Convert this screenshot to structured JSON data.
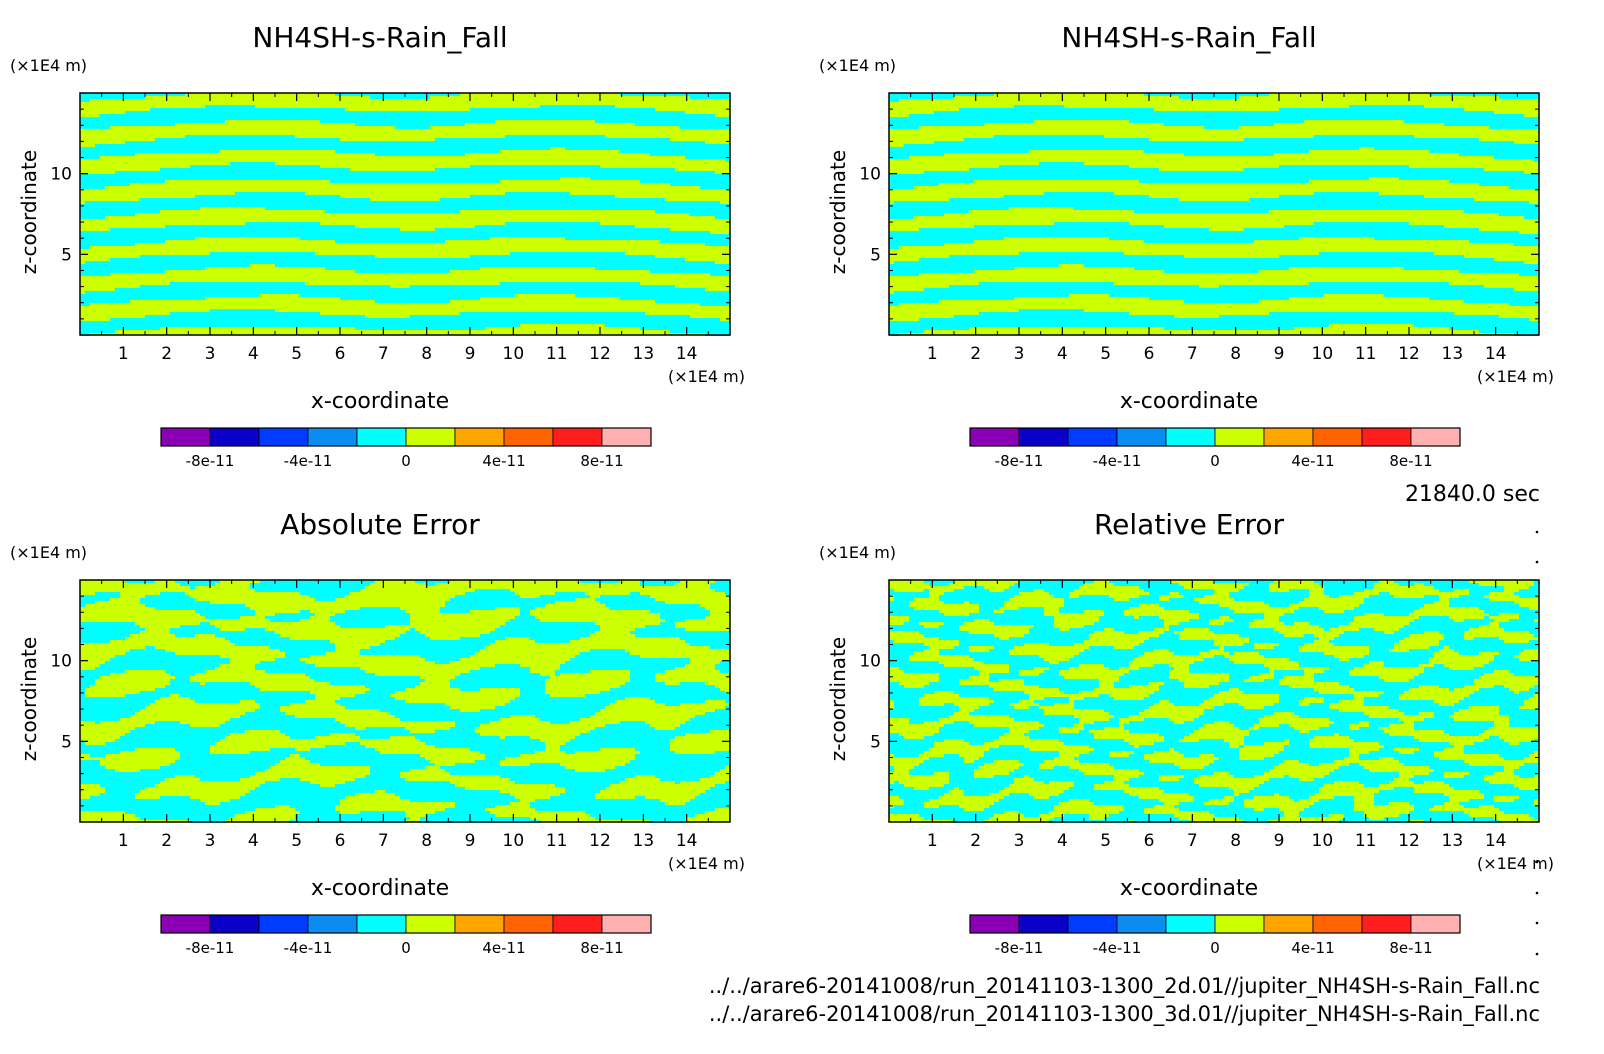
{
  "figure": {
    "time_label": "21840.0 sec",
    "file_paths": [
      "../../arare6-20141008/run_20141103-1300_2d.01//jupiter_NH4SH-s-Rain_Fall.nc",
      "../../arare6-20141008/run_20141103-1300_3d.01//jupiter_NH4SH-s-Rain_Fall.nc"
    ],
    "colors": {
      "field_low": "#00ffff",
      "field_high": "#ccff00",
      "frame": "#000000"
    }
  },
  "chart_data": [
    {
      "type": "heatmap",
      "title": "NH4SH-s-Rain_Fall",
      "xlabel": "x-coordinate",
      "ylabel": "z-coordinate",
      "x_unit": "(×1E4 m)",
      "y_unit": "(×1E4 m)",
      "xlim": [
        0,
        15
      ],
      "ylim": [
        0,
        15
      ],
      "x_ticks": [
        1,
        2,
        3,
        4,
        5,
        6,
        7,
        8,
        9,
        10,
        11,
        12,
        13,
        14
      ],
      "y_ticks": [
        5,
        10
      ],
      "pattern": "smooth",
      "colorbar": {
        "colors": [
          "#8b00b5",
          "#0a00c8",
          "#003cff",
          "#0a8cf0",
          "#00ffff",
          "#ccff00",
          "#ffa500",
          "#ff6400",
          "#ff1e1e",
          "#ffb0b0"
        ],
        "tick_values": [
          -8e-11,
          -4e-11,
          0,
          4e-11,
          8e-11
        ],
        "tick_labels": [
          "-8e-11",
          "-4e-11",
          "0",
          "4e-11",
          "8e-11"
        ],
        "range": [
          -1e-10,
          1e-10
        ]
      }
    },
    {
      "type": "heatmap",
      "title": "NH4SH-s-Rain_Fall",
      "xlabel": "x-coordinate",
      "ylabel": "z-coordinate",
      "x_unit": "(×1E4 m)",
      "y_unit": "(×1E4 m)",
      "xlim": [
        0,
        15
      ],
      "ylim": [
        0,
        15
      ],
      "x_ticks": [
        1,
        2,
        3,
        4,
        5,
        6,
        7,
        8,
        9,
        10,
        11,
        12,
        13,
        14
      ],
      "y_ticks": [
        5,
        10
      ],
      "pattern": "smooth",
      "colorbar": {
        "colors": [
          "#8b00b5",
          "#0a00c8",
          "#003cff",
          "#0a8cf0",
          "#00ffff",
          "#ccff00",
          "#ffa500",
          "#ff6400",
          "#ff1e1e",
          "#ffb0b0"
        ],
        "tick_values": [
          -8e-11,
          -4e-11,
          0,
          4e-11,
          8e-11
        ],
        "tick_labels": [
          "-8e-11",
          "-4e-11",
          "0",
          "4e-11",
          "8e-11"
        ],
        "range": [
          -1e-10,
          1e-10
        ]
      }
    },
    {
      "type": "heatmap",
      "title": "Absolute Error",
      "xlabel": "x-coordinate",
      "ylabel": "z-coordinate",
      "x_unit": "(×1E4 m)",
      "y_unit": "(×1E4 m)",
      "xlim": [
        0,
        15
      ],
      "ylim": [
        0,
        15
      ],
      "x_ticks": [
        1,
        2,
        3,
        4,
        5,
        6,
        7,
        8,
        9,
        10,
        11,
        12,
        13,
        14
      ],
      "y_ticks": [
        5,
        10
      ],
      "pattern": "noisy",
      "colorbar": {
        "colors": [
          "#8b00b5",
          "#0a00c8",
          "#003cff",
          "#0a8cf0",
          "#00ffff",
          "#ccff00",
          "#ffa500",
          "#ff6400",
          "#ff1e1e",
          "#ffb0b0"
        ],
        "tick_values": [
          -8e-11,
          -4e-11,
          0,
          4e-11,
          8e-11
        ],
        "tick_labels": [
          "-8e-11",
          "-4e-11",
          "0",
          "4e-11",
          "8e-11"
        ],
        "range": [
          -1e-10,
          1e-10
        ]
      }
    },
    {
      "type": "heatmap",
      "title": "Relative Error",
      "xlabel": "x-coordinate",
      "ylabel": "z-coordinate",
      "x_unit": "(×1E4 m)",
      "y_unit": "(×1E4 m)",
      "xlim": [
        0,
        15
      ],
      "ylim": [
        0,
        15
      ],
      "x_ticks": [
        1,
        2,
        3,
        4,
        5,
        6,
        7,
        8,
        9,
        10,
        11,
        12,
        13,
        14
      ],
      "y_ticks": [
        5,
        10
      ],
      "pattern": "fine",
      "colorbar": {
        "colors": [
          "#8b00b5",
          "#0a00c8",
          "#003cff",
          "#0a8cf0",
          "#00ffff",
          "#ccff00",
          "#ffa500",
          "#ff6400",
          "#ff1e1e",
          "#ffb0b0"
        ],
        "tick_values": [
          -8e-11,
          -4e-11,
          0,
          4e-11,
          8e-11
        ],
        "tick_labels": [
          "-8e-11",
          "-4e-11",
          "0",
          "4e-11",
          "8e-11"
        ],
        "range": [
          -1e-10,
          1e-10
        ]
      }
    }
  ]
}
